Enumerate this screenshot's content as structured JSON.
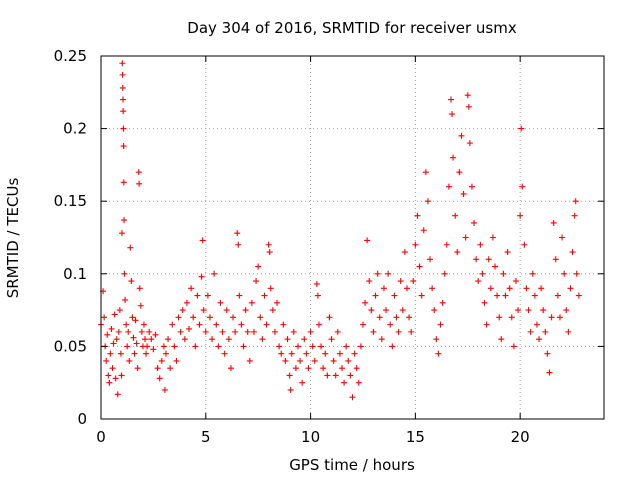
{
  "chart_data": {
    "type": "scatter",
    "title": "Day 304 of 2016, SRMTID for receiver usmx",
    "xlabel": "GPS time / hours",
    "ylabel": "SRMTID / TECUs",
    "xlim": [
      0,
      24
    ],
    "ylim": [
      0,
      0.25
    ],
    "x_ticks": [
      0,
      5,
      10,
      15,
      20
    ],
    "x_tick_labels": [
      "0",
      "5",
      "10",
      "15",
      "20"
    ],
    "y_ticks": [
      0,
      0.05,
      0.1,
      0.15,
      0.2,
      0.25
    ],
    "y_tick_labels": [
      "0",
      "0.05",
      "0.1",
      "0.15",
      "0.2",
      "0.25"
    ],
    "grid": true,
    "marker": "+",
    "series": [
      {
        "name": "SRMTID",
        "color": "#ff0000",
        "points": [
          [
            0.0,
            0.065
          ],
          [
            0.1,
            0.088
          ],
          [
            0.15,
            0.07
          ],
          [
            0.2,
            0.05
          ],
          [
            0.25,
            0.04
          ],
          [
            0.3,
            0.058
          ],
          [
            0.35,
            0.03
          ],
          [
            0.4,
            0.025
          ],
          [
            0.45,
            0.045
          ],
          [
            0.5,
            0.062
          ],
          [
            0.55,
            0.035
          ],
          [
            0.6,
            0.052
          ],
          [
            0.65,
            0.072
          ],
          [
            0.7,
            0.028
          ],
          [
            0.75,
            0.055
          ],
          [
            0.8,
            0.017
          ],
          [
            0.85,
            0.06
          ],
          [
            0.9,
            0.075
          ],
          [
            0.95,
            0.045
          ],
          [
            0.98,
            0.03
          ],
          [
            1.0,
            0.128
          ],
          [
            1.02,
            0.245
          ],
          [
            1.03,
            0.237
          ],
          [
            1.04,
            0.228
          ],
          [
            1.05,
            0.22
          ],
          [
            1.06,
            0.212
          ],
          [
            1.07,
            0.2
          ],
          [
            1.08,
            0.188
          ],
          [
            1.09,
            0.163
          ],
          [
            1.1,
            0.137
          ],
          [
            1.12,
            0.1
          ],
          [
            1.15,
            0.082
          ],
          [
            1.2,
            0.065
          ],
          [
            1.25,
            0.05
          ],
          [
            1.3,
            0.06
          ],
          [
            1.35,
            0.04
          ],
          [
            1.4,
            0.118
          ],
          [
            1.45,
            0.095
          ],
          [
            1.5,
            0.07
          ],
          [
            1.55,
            0.056
          ],
          [
            1.6,
            0.045
          ],
          [
            1.65,
            0.068
          ],
          [
            1.7,
            0.052
          ],
          [
            1.75,
            0.035
          ],
          [
            1.8,
            0.17
          ],
          [
            1.82,
            0.162
          ],
          [
            1.85,
            0.09
          ],
          [
            1.9,
            0.078
          ],
          [
            1.95,
            0.06
          ],
          [
            2.0,
            0.05
          ],
          [
            2.05,
            0.065
          ],
          [
            2.1,
            0.055
          ],
          [
            2.15,
            0.045
          ],
          [
            2.2,
            0.05
          ],
          [
            2.3,
            0.06
          ],
          [
            2.4,
            0.055
          ],
          [
            2.5,
            0.048
          ],
          [
            2.6,
            0.058
          ],
          [
            2.7,
            0.035
          ],
          [
            2.8,
            0.028
          ],
          [
            2.9,
            0.04
          ],
          [
            3.0,
            0.05
          ],
          [
            3.05,
            0.02
          ],
          [
            3.1,
            0.045
          ],
          [
            3.2,
            0.055
          ],
          [
            3.3,
            0.035
          ],
          [
            3.4,
            0.065
          ],
          [
            3.5,
            0.05
          ],
          [
            3.6,
            0.04
          ],
          [
            3.7,
            0.07
          ],
          [
            3.8,
            0.06
          ],
          [
            3.9,
            0.075
          ],
          [
            4.0,
            0.055
          ],
          [
            4.1,
            0.08
          ],
          [
            4.2,
            0.062
          ],
          [
            4.3,
            0.09
          ],
          [
            4.4,
            0.07
          ],
          [
            4.5,
            0.05
          ],
          [
            4.6,
            0.085
          ],
          [
            4.7,
            0.065
          ],
          [
            4.8,
            0.098
          ],
          [
            4.85,
            0.123
          ],
          [
            4.9,
            0.075
          ],
          [
            5.0,
            0.06
          ],
          [
            5.1,
            0.085
          ],
          [
            5.2,
            0.07
          ],
          [
            5.3,
            0.055
          ],
          [
            5.4,
            0.1
          ],
          [
            5.5,
            0.065
          ],
          [
            5.6,
            0.05
          ],
          [
            5.7,
            0.08
          ],
          [
            5.8,
            0.06
          ],
          [
            5.9,
            0.045
          ],
          [
            6.0,
            0.075
          ],
          [
            6.1,
            0.055
          ],
          [
            6.2,
            0.035
          ],
          [
            6.3,
            0.07
          ],
          [
            6.4,
            0.06
          ],
          [
            6.5,
            0.128
          ],
          [
            6.55,
            0.12
          ],
          [
            6.6,
            0.085
          ],
          [
            6.7,
            0.065
          ],
          [
            6.8,
            0.05
          ],
          [
            6.9,
            0.075
          ],
          [
            7.0,
            0.06
          ],
          [
            7.1,
            0.04
          ],
          [
            7.2,
            0.08
          ],
          [
            7.3,
            0.06
          ],
          [
            7.4,
            0.095
          ],
          [
            7.5,
            0.105
          ],
          [
            7.6,
            0.07
          ],
          [
            7.7,
            0.055
          ],
          [
            7.8,
            0.085
          ],
          [
            7.9,
            0.065
          ],
          [
            8.0,
            0.12
          ],
          [
            8.05,
            0.115
          ],
          [
            8.1,
            0.09
          ],
          [
            8.2,
            0.075
          ],
          [
            8.3,
            0.06
          ],
          [
            8.4,
            0.08
          ],
          [
            8.5,
            0.05
          ],
          [
            8.6,
            0.045
          ],
          [
            8.7,
            0.065
          ],
          [
            8.8,
            0.04
          ],
          [
            8.9,
            0.055
          ],
          [
            9.0,
            0.03
          ],
          [
            9.05,
            0.02
          ],
          [
            9.1,
            0.045
          ],
          [
            9.2,
            0.06
          ],
          [
            9.3,
            0.035
          ],
          [
            9.4,
            0.05
          ],
          [
            9.5,
            0.04
          ],
          [
            9.6,
            0.025
          ],
          [
            9.7,
            0.055
          ],
          [
            9.8,
            0.045
          ],
          [
            9.9,
            0.035
          ],
          [
            10.0,
            0.06
          ],
          [
            10.1,
            0.05
          ],
          [
            10.2,
            0.04
          ],
          [
            10.3,
            0.093
          ],
          [
            10.35,
            0.085
          ],
          [
            10.4,
            0.065
          ],
          [
            10.5,
            0.05
          ],
          [
            10.6,
            0.035
          ],
          [
            10.7,
            0.045
          ],
          [
            10.8,
            0.03
          ],
          [
            10.9,
            0.07
          ],
          [
            11.0,
            0.055
          ],
          [
            11.1,
            0.04
          ],
          [
            11.2,
            0.03
          ],
          [
            11.3,
            0.06
          ],
          [
            11.4,
            0.045
          ],
          [
            11.5,
            0.035
          ],
          [
            11.6,
            0.025
          ],
          [
            11.7,
            0.05
          ],
          [
            11.8,
            0.04
          ],
          [
            11.9,
            0.03
          ],
          [
            12.0,
            0.015
          ],
          [
            12.1,
            0.045
          ],
          [
            12.2,
            0.035
          ],
          [
            12.3,
            0.025
          ],
          [
            12.4,
            0.05
          ],
          [
            12.5,
            0.065
          ],
          [
            12.6,
            0.08
          ],
          [
            12.7,
            0.123
          ],
          [
            12.8,
            0.095
          ],
          [
            12.9,
            0.075
          ],
          [
            13.0,
            0.06
          ],
          [
            13.1,
            0.085
          ],
          [
            13.2,
            0.1
          ],
          [
            13.3,
            0.07
          ],
          [
            13.4,
            0.055
          ],
          [
            13.5,
            0.09
          ],
          [
            13.6,
            0.075
          ],
          [
            13.7,
            0.1
          ],
          [
            13.8,
            0.065
          ],
          [
            13.9,
            0.05
          ],
          [
            14.0,
            0.085
          ],
          [
            14.1,
            0.07
          ],
          [
            14.2,
            0.06
          ],
          [
            14.3,
            0.095
          ],
          [
            14.4,
            0.075
          ],
          [
            14.5,
            0.115
          ],
          [
            14.6,
            0.09
          ],
          [
            14.7,
            0.07
          ],
          [
            14.8,
            0.06
          ],
          [
            14.9,
            0.095
          ],
          [
            15.0,
            0.12
          ],
          [
            15.1,
            0.14
          ],
          [
            15.2,
            0.105
          ],
          [
            15.3,
            0.085
          ],
          [
            15.4,
            0.13
          ],
          [
            15.5,
            0.17
          ],
          [
            15.6,
            0.15
          ],
          [
            15.7,
            0.11
          ],
          [
            15.8,
            0.09
          ],
          [
            15.9,
            0.075
          ],
          [
            16.0,
            0.055
          ],
          [
            16.1,
            0.045
          ],
          [
            16.2,
            0.065
          ],
          [
            16.3,
            0.08
          ],
          [
            16.4,
            0.1
          ],
          [
            16.5,
            0.12
          ],
          [
            16.6,
            0.16
          ],
          [
            16.7,
            0.22
          ],
          [
            16.75,
            0.21
          ],
          [
            16.8,
            0.18
          ],
          [
            16.9,
            0.14
          ],
          [
            17.0,
            0.115
          ],
          [
            17.1,
            0.17
          ],
          [
            17.2,
            0.195
          ],
          [
            17.3,
            0.155
          ],
          [
            17.4,
            0.125
          ],
          [
            17.5,
            0.223
          ],
          [
            17.55,
            0.215
          ],
          [
            17.6,
            0.19
          ],
          [
            17.7,
            0.16
          ],
          [
            17.8,
            0.135
          ],
          [
            17.9,
            0.11
          ],
          [
            18.0,
            0.095
          ],
          [
            18.1,
            0.12
          ],
          [
            18.2,
            0.1
          ],
          [
            18.3,
            0.08
          ],
          [
            18.4,
            0.065
          ],
          [
            18.5,
            0.11
          ],
          [
            18.6,
            0.09
          ],
          [
            18.7,
            0.125
          ],
          [
            18.8,
            0.105
          ],
          [
            18.9,
            0.085
          ],
          [
            19.0,
            0.07
          ],
          [
            19.1,
            0.055
          ],
          [
            19.2,
            0.1
          ],
          [
            19.3,
            0.085
          ],
          [
            19.4,
            0.115
          ],
          [
            19.5,
            0.09
          ],
          [
            19.6,
            0.07
          ],
          [
            19.7,
            0.05
          ],
          [
            19.8,
            0.095
          ],
          [
            19.9,
            0.075
          ],
          [
            20.0,
            0.14
          ],
          [
            20.05,
            0.2
          ],
          [
            20.1,
            0.16
          ],
          [
            20.2,
            0.12
          ],
          [
            20.3,
            0.09
          ],
          [
            20.4,
            0.075
          ],
          [
            20.5,
            0.06
          ],
          [
            20.6,
            0.1
          ],
          [
            20.7,
            0.085
          ],
          [
            20.8,
            0.065
          ],
          [
            20.9,
            0.055
          ],
          [
            21.0,
            0.09
          ],
          [
            21.1,
            0.075
          ],
          [
            21.2,
            0.06
          ],
          [
            21.3,
            0.045
          ],
          [
            21.4,
            0.032
          ],
          [
            21.5,
            0.07
          ],
          [
            21.6,
            0.135
          ],
          [
            21.7,
            0.11
          ],
          [
            21.8,
            0.085
          ],
          [
            21.9,
            0.07
          ],
          [
            22.0,
            0.125
          ],
          [
            22.1,
            0.1
          ],
          [
            22.2,
            0.075
          ],
          [
            22.3,
            0.06
          ],
          [
            22.4,
            0.09
          ],
          [
            22.5,
            0.115
          ],
          [
            22.6,
            0.14
          ],
          [
            22.65,
            0.15
          ],
          [
            22.7,
            0.1
          ],
          [
            22.8,
            0.085
          ]
        ]
      }
    ]
  }
}
